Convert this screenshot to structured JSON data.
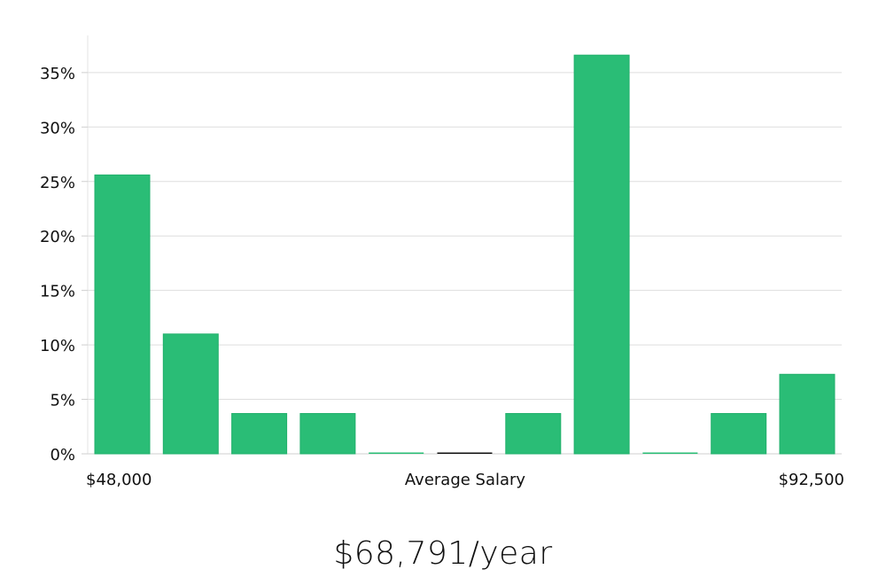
{
  "chart_data": {
    "type": "bar",
    "title": "",
    "xlabel": "Average Salary",
    "ylabel": "",
    "x_min_label": "$48,000",
    "x_max_label": "$92,500",
    "yticks": [
      "0%",
      "5%",
      "10%",
      "15%",
      "20%",
      "25%",
      "30%",
      "35%"
    ],
    "ylim": [
      0,
      38.3
    ],
    "grid": true,
    "bar_color": "#2abd76",
    "empty_bar_colors": [
      "#2abd76",
      "#111111",
      "#2abd76",
      "#2abd76"
    ],
    "values": [
      25.6,
      11.0,
      3.7,
      3.7,
      0,
      0,
      3.7,
      36.6,
      0,
      3.7,
      7.3
    ]
  },
  "summary": {
    "average_salary": "$68,791/year"
  }
}
